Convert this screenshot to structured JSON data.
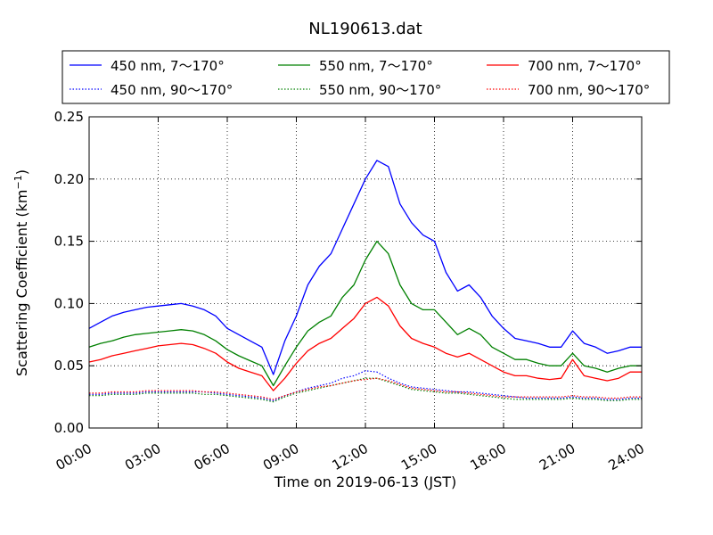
{
  "chart_data": {
    "type": "line",
    "title": "NL190613.dat",
    "xlabel": "Time on 2019-06-13 (JST)",
    "ylabel": "Scattering Coefficient (km",
    "ylabel_sup": "−1",
    "ylabel_close": ")",
    "xlim": [
      "00:00",
      "24:00"
    ],
    "ylim": [
      0.0,
      0.25
    ],
    "grid": true,
    "legend_position": "top",
    "x_tick_labels": [
      "00:00",
      "03:00",
      "06:00",
      "09:00",
      "12:00",
      "15:00",
      "18:00",
      "21:00",
      "24:00"
    ],
    "y_tick_labels": [
      "0.00",
      "0.05",
      "0.10",
      "0.15",
      "0.20",
      "0.25"
    ],
    "x": [
      "00:00",
      "00:30",
      "01:00",
      "01:30",
      "02:00",
      "02:30",
      "03:00",
      "03:30",
      "04:00",
      "04:30",
      "05:00",
      "05:30",
      "06:00",
      "06:30",
      "07:00",
      "07:30",
      "08:00",
      "08:30",
      "09:00",
      "09:30",
      "10:00",
      "10:30",
      "11:00",
      "11:30",
      "12:00",
      "12:30",
      "13:00",
      "13:30",
      "14:00",
      "14:30",
      "15:00",
      "15:30",
      "16:00",
      "16:30",
      "17:00",
      "17:30",
      "18:00",
      "18:30",
      "19:00",
      "19:30",
      "20:00",
      "20:30",
      "21:00",
      "21:30",
      "22:00",
      "22:30",
      "23:00",
      "23:30",
      "24:00"
    ],
    "series": [
      {
        "name": "450 nm, 7～170°",
        "color": "#0000ff",
        "style": "solid",
        "values": [
          0.08,
          0.085,
          0.09,
          0.093,
          0.095,
          0.097,
          0.098,
          0.099,
          0.1,
          0.098,
          0.095,
          0.09,
          0.08,
          0.075,
          0.07,
          0.065,
          0.043,
          0.07,
          0.09,
          0.115,
          0.13,
          0.14,
          0.16,
          0.18,
          0.2,
          0.215,
          0.21,
          0.18,
          0.165,
          0.155,
          0.15,
          0.125,
          0.11,
          0.115,
          0.105,
          0.09,
          0.08,
          0.072,
          0.07,
          0.068,
          0.065,
          0.065,
          0.078,
          0.068,
          0.065,
          0.06,
          0.062,
          0.065,
          0.065
        ]
      },
      {
        "name": "450 nm, 90～170°",
        "color": "#0000ff",
        "style": "dotted",
        "values": [
          0.027,
          0.027,
          0.028,
          0.028,
          0.028,
          0.029,
          0.029,
          0.029,
          0.029,
          0.029,
          0.029,
          0.028,
          0.027,
          0.026,
          0.025,
          0.024,
          0.022,
          0.026,
          0.029,
          0.032,
          0.034,
          0.036,
          0.04,
          0.042,
          0.046,
          0.045,
          0.04,
          0.036,
          0.033,
          0.032,
          0.031,
          0.03,
          0.029,
          0.029,
          0.028,
          0.027,
          0.026,
          0.025,
          0.024,
          0.024,
          0.024,
          0.024,
          0.025,
          0.024,
          0.024,
          0.023,
          0.023,
          0.024,
          0.024
        ]
      },
      {
        "name": "550 nm, 7～170°",
        "color": "#008000",
        "style": "solid",
        "values": [
          0.065,
          0.068,
          0.07,
          0.073,
          0.075,
          0.076,
          0.077,
          0.078,
          0.079,
          0.078,
          0.075,
          0.07,
          0.063,
          0.058,
          0.054,
          0.05,
          0.034,
          0.05,
          0.065,
          0.078,
          0.085,
          0.09,
          0.105,
          0.115,
          0.135,
          0.15,
          0.14,
          0.115,
          0.1,
          0.095,
          0.095,
          0.085,
          0.075,
          0.08,
          0.075,
          0.065,
          0.06,
          0.055,
          0.055,
          0.052,
          0.05,
          0.05,
          0.06,
          0.05,
          0.048,
          0.045,
          0.048,
          0.05,
          0.05
        ]
      },
      {
        "name": "550 nm, 90～170°",
        "color": "#008000",
        "style": "dotted",
        "values": [
          0.026,
          0.026,
          0.027,
          0.027,
          0.027,
          0.028,
          0.028,
          0.028,
          0.028,
          0.028,
          0.027,
          0.027,
          0.026,
          0.025,
          0.024,
          0.023,
          0.021,
          0.025,
          0.028,
          0.03,
          0.032,
          0.034,
          0.036,
          0.038,
          0.04,
          0.04,
          0.037,
          0.034,
          0.031,
          0.03,
          0.029,
          0.028,
          0.028,
          0.027,
          0.026,
          0.025,
          0.024,
          0.023,
          0.023,
          0.023,
          0.023,
          0.023,
          0.024,
          0.023,
          0.023,
          0.022,
          0.022,
          0.023,
          0.023
        ]
      },
      {
        "name": "700 nm, 7～170°",
        "color": "#ff0000",
        "style": "solid",
        "values": [
          0.053,
          0.055,
          0.058,
          0.06,
          0.062,
          0.064,
          0.066,
          0.067,
          0.068,
          0.067,
          0.064,
          0.06,
          0.053,
          0.048,
          0.045,
          0.042,
          0.03,
          0.04,
          0.052,
          0.062,
          0.068,
          0.072,
          0.08,
          0.088,
          0.1,
          0.105,
          0.098,
          0.082,
          0.072,
          0.068,
          0.065,
          0.06,
          0.057,
          0.06,
          0.055,
          0.05,
          0.045,
          0.042,
          0.042,
          0.04,
          0.039,
          0.04,
          0.055,
          0.042,
          0.04,
          0.038,
          0.04,
          0.045,
          0.045
        ]
      },
      {
        "name": "700 nm, 90～170°",
        "color": "#ff0000",
        "style": "dotted",
        "values": [
          0.028,
          0.028,
          0.029,
          0.029,
          0.029,
          0.03,
          0.03,
          0.03,
          0.03,
          0.03,
          0.029,
          0.029,
          0.028,
          0.027,
          0.026,
          0.025,
          0.023,
          0.026,
          0.029,
          0.031,
          0.033,
          0.034,
          0.036,
          0.038,
          0.039,
          0.04,
          0.038,
          0.035,
          0.032,
          0.031,
          0.03,
          0.029,
          0.029,
          0.028,
          0.027,
          0.026,
          0.025,
          0.025,
          0.025,
          0.025,
          0.025,
          0.025,
          0.026,
          0.025,
          0.025,
          0.024,
          0.024,
          0.025,
          0.025
        ]
      }
    ]
  }
}
